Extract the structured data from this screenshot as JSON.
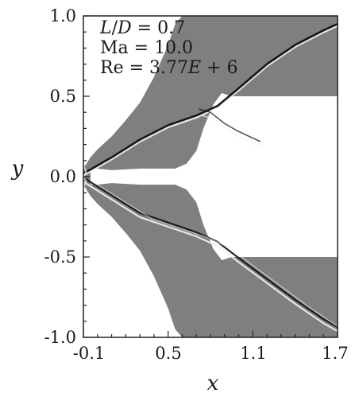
{
  "figure": {
    "annotation_lines": [
      {
        "italic": "L",
        "sep": "/",
        "italic2": "D",
        "rest": " = 0.7"
      },
      {
        "text": "Ma = 10.0"
      },
      {
        "text": "Re = 3.77",
        "italic": "E",
        "rest": " + 6"
      }
    ],
    "field_color": "#7f7f7f",
    "shock_dark": "#111111",
    "shock_light": "#f2f2f2"
  },
  "chart_data": {
    "type": "contour",
    "title": "",
    "xlabel": "x",
    "ylabel": "y",
    "xlim": [
      -0.1,
      1.7
    ],
    "ylim": [
      -1.0,
      1.0
    ],
    "xticks": [
      "-0.1",
      "0.5",
      "1.1",
      "1.7"
    ],
    "yticks": [
      "1.0",
      "0.5",
      "0.0",
      "-0.5",
      "-1.0"
    ],
    "ytick_values": [
      1.0,
      0.5,
      0.0,
      -0.5,
      -1.0
    ],
    "xtick_values": [
      -0.1,
      0.5,
      1.1,
      1.7
    ],
    "annotations": [
      "L/D = 0.7",
      "Ma = 10.0",
      "Re = 3.77E + 6"
    ],
    "shocks": {
      "upper_bow": [
        [
          -0.1,
          0.02
        ],
        [
          0.1,
          0.12
        ],
        [
          0.3,
          0.23
        ],
        [
          0.5,
          0.32
        ],
        [
          0.7,
          0.38
        ],
        [
          0.85,
          0.44
        ],
        [
          1.0,
          0.55
        ],
        [
          1.2,
          0.7
        ],
        [
          1.4,
          0.82
        ],
        [
          1.6,
          0.91
        ],
        [
          1.7,
          0.95
        ]
      ],
      "upper_reflected": [
        [
          0.72,
          0.42
        ],
        [
          0.8,
          0.4
        ],
        [
          0.9,
          0.33
        ],
        [
          1.0,
          0.28
        ],
        [
          1.15,
          0.22
        ]
      ],
      "lower_bow": [
        [
          -0.1,
          -0.02
        ],
        [
          0.1,
          -0.13
        ],
        [
          0.3,
          -0.24
        ],
        [
          0.5,
          -0.3
        ],
        [
          0.7,
          -0.36
        ],
        [
          0.85,
          -0.42
        ],
        [
          1.0,
          -0.52
        ],
        [
          1.2,
          -0.65
        ],
        [
          1.4,
          -0.78
        ],
        [
          1.6,
          -0.9
        ],
        [
          1.7,
          -0.95
        ]
      ]
    }
  }
}
